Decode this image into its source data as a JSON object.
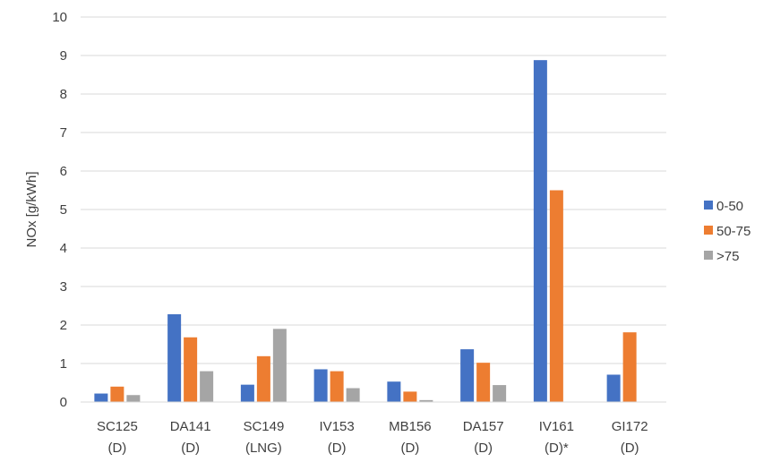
{
  "chart_data": {
    "type": "bar",
    "title": "",
    "xlabel": "",
    "ylabel": "NOx [g/kWh]",
    "ylim": [
      0,
      10
    ],
    "yticks": [
      0,
      1,
      2,
      3,
      4,
      5,
      6,
      7,
      8,
      9,
      10
    ],
    "grid": true,
    "legend_position": "right",
    "categories": [
      [
        "SC125",
        "(D)"
      ],
      [
        "DA141",
        "(D)"
      ],
      [
        "SC149",
        "(LNG)"
      ],
      [
        "IV153",
        "(D)"
      ],
      [
        "MB156",
        "(D)"
      ],
      [
        "DA157",
        "(D)"
      ],
      [
        "IV161",
        "(D)*"
      ],
      [
        "GI172",
        "(D)"
      ]
    ],
    "series": [
      {
        "name": "0-50",
        "color": "#4472c4",
        "values": [
          0.22,
          2.28,
          0.45,
          0.85,
          0.53,
          1.37,
          8.88,
          0.71
        ]
      },
      {
        "name": "50-75",
        "color": "#ed7d31",
        "values": [
          0.4,
          1.68,
          1.19,
          0.8,
          0.27,
          1.02,
          5.5,
          1.81
        ]
      },
      {
        "name": ">75",
        "color": "#a5a5a5",
        "values": [
          0.18,
          0.8,
          1.9,
          0.36,
          0.05,
          0.44,
          null,
          null
        ]
      }
    ]
  }
}
